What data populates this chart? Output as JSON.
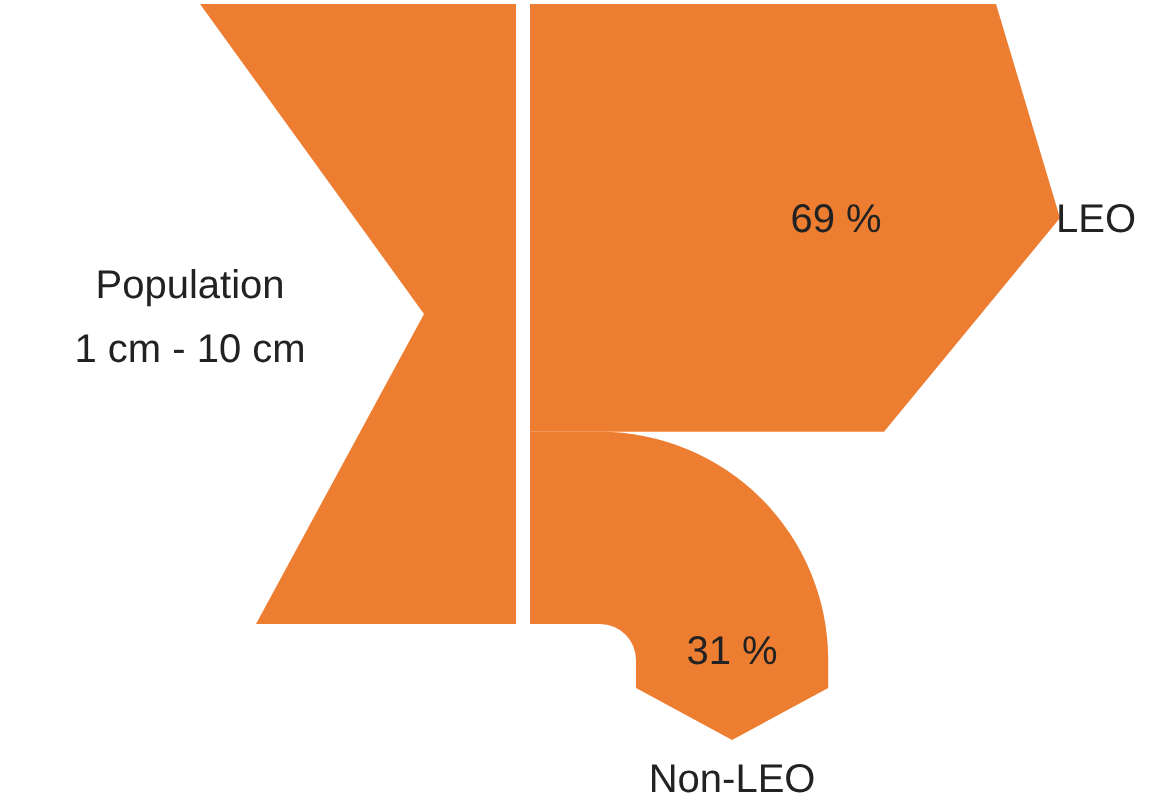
{
  "chart_data": {
    "type": "other",
    "categories": [
      "LEO",
      "Non-LEO"
    ],
    "values": [
      69,
      31
    ],
    "value_labels": [
      "69 %",
      "31 %"
    ],
    "color": "#ed7d31",
    "annotations": [
      "Population\n1 cm - 10 cm"
    ]
  }
}
